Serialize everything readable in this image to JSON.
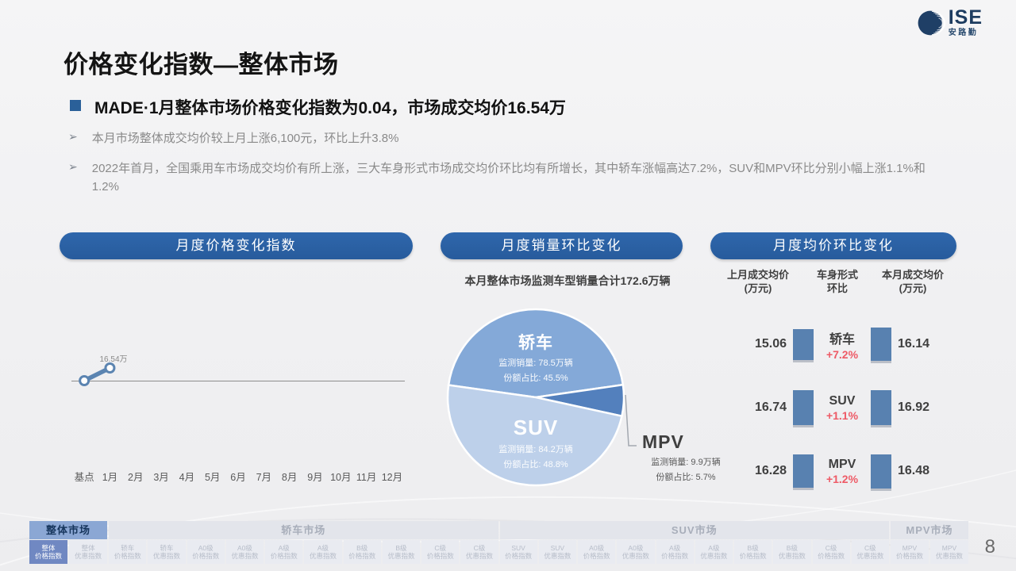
{
  "logo": {
    "name": "ISE",
    "subname": "安路勤"
  },
  "page": {
    "number": "8"
  },
  "header": {
    "title": "价格变化指数—整体市场",
    "headline": "MADE·1月整体市场价格变化指数为0.04，市场成交均价16.54万",
    "bullet_marker": "➢",
    "bullets": [
      "本月市场整体成交均价较上月上涨6,100元，环比上升3.8%",
      "2022年首月，全国乘用车市场成交均价有所上涨，三大车身形式市场成交均价环比均有所增长，其中轿车涨幅高达7.2%，SUV和MPV环比分别小幅上涨1.1%和1.2%"
    ]
  },
  "sections": {
    "price_index": {
      "title": "月度价格变化指数"
    },
    "sales_change": {
      "title": "月度销量环比变化"
    },
    "avg_price_change": {
      "title": "月度均价环比变化"
    }
  },
  "comparison": {
    "col_prev_l1": "上月成交均价",
    "col_prev_l2": "(万元)",
    "col_mid_l1": "车身形式",
    "col_mid_l2": "环比",
    "col_curr_l1": "本月成交均价",
    "col_curr_l2": "(万元)"
  },
  "chart_data": [
    {
      "type": "line",
      "title": "月度价格变化指数",
      "categories": [
        "基点",
        "1月",
        "2月",
        "3月",
        "4月",
        "5月",
        "6月",
        "7月",
        "8月",
        "9月",
        "10月",
        "11月",
        "12月"
      ],
      "values": [
        0,
        0.04,
        null,
        null,
        null,
        null,
        null,
        null,
        null,
        null,
        null,
        null,
        null
      ],
      "point_label": "16.54万",
      "line_color": "#5b84b1",
      "ylabel": "",
      "xlabel": "",
      "grid": false
    },
    {
      "type": "pie",
      "title": "本月整体市场监测车型销量合计172.6万辆",
      "start_angle": 278,
      "slices": [
        {
          "name": "轿车",
          "volume_label": "监测销量: 78.5万辆",
          "share_label": "份额占比: 45.5%",
          "pct": 45.5,
          "color": "#84a9d8"
        },
        {
          "name": "MPV",
          "volume_label": "监测销量: 9.9万辆",
          "share_label": "份额占比: 5.7%",
          "pct": 5.7,
          "color": "#5380bd"
        },
        {
          "name": "SUV",
          "volume_label": "监测销量: 84.2万辆",
          "share_label": "份额占比: 48.8%",
          "pct": 48.8,
          "color": "#bdd0ea"
        }
      ]
    },
    {
      "type": "table",
      "title": "月度均价环比变化",
      "columns": [
        "上月成交均价(万元)",
        "车身形式环比",
        "本月成交均价(万元)"
      ],
      "rows": [
        {
          "name": "轿车",
          "prev": "15.06",
          "change": "+7.2%",
          "curr": "16.14"
        },
        {
          "name": "SUV",
          "prev": "16.74",
          "change": "+1.1%",
          "curr": "16.92"
        },
        {
          "name": "MPV",
          "prev": "16.28",
          "change": "+1.2%",
          "curr": "16.48"
        }
      ],
      "bar_color": "#5881b0",
      "change_color": "#ee5a66"
    }
  ],
  "bottom_nav": {
    "markets": [
      {
        "label": "整体市场",
        "active": true,
        "subtabs": [
          {
            "l1": "整体",
            "l2": "价格指数",
            "active": true
          },
          {
            "l1": "整体",
            "l2": "优惠指数"
          }
        ]
      },
      {
        "label": "轿车市场",
        "subtabs": [
          {
            "l1": "轿车",
            "l2": "价格指数"
          },
          {
            "l1": "轿车",
            "l2": "优惠指数"
          },
          {
            "l1": "A0级",
            "l2": "价格指数"
          },
          {
            "l1": "A0级",
            "l2": "优惠指数"
          },
          {
            "l1": "A级",
            "l2": "价格指数"
          },
          {
            "l1": "A级",
            "l2": "优惠指数"
          },
          {
            "l1": "B级",
            "l2": "价格指数"
          },
          {
            "l1": "B级",
            "l2": "优惠指数"
          },
          {
            "l1": "C级",
            "l2": "价格指数"
          },
          {
            "l1": "C级",
            "l2": "优惠指数"
          }
        ]
      },
      {
        "label": "SUV市场",
        "subtabs": [
          {
            "l1": "SUV",
            "l2": "价格指数"
          },
          {
            "l1": "SUV",
            "l2": "优惠指数"
          },
          {
            "l1": "A0级",
            "l2": "价格指数"
          },
          {
            "l1": "A0级",
            "l2": "优惠指数"
          },
          {
            "l1": "A级",
            "l2": "价格指数"
          },
          {
            "l1": "A级",
            "l2": "优惠指数"
          },
          {
            "l1": "B级",
            "l2": "价格指数"
          },
          {
            "l1": "B级",
            "l2": "优惠指数"
          },
          {
            "l1": "C级",
            "l2": "价格指数"
          },
          {
            "l1": "C级",
            "l2": "优惠指数"
          }
        ]
      },
      {
        "label": "MPV市场",
        "subtabs": [
          {
            "l1": "MPV",
            "l2": "价格指数"
          },
          {
            "l1": "MPV",
            "l2": "优惠指数"
          }
        ]
      }
    ]
  }
}
